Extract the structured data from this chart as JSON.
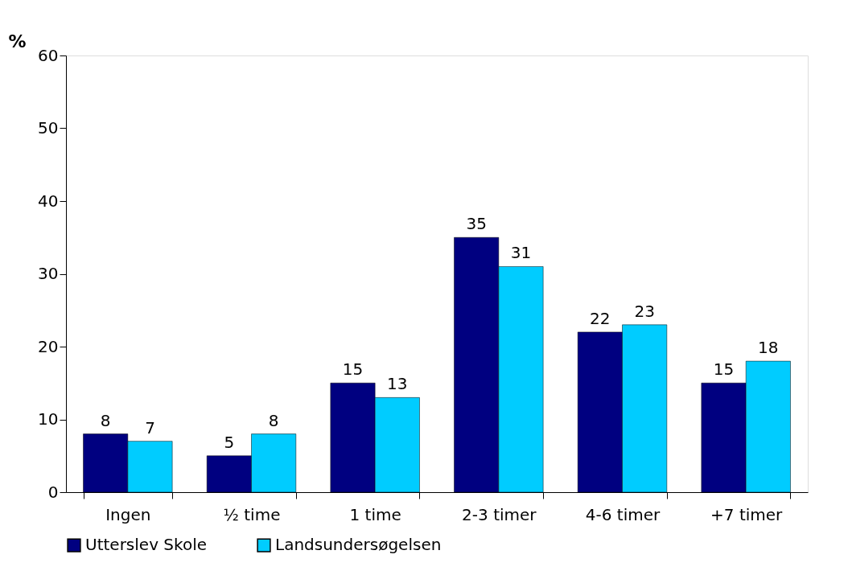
{
  "chart_data": {
    "type": "bar",
    "ylabel": "%",
    "categories": [
      "Ingen",
      "½ time",
      "1 time",
      "2-3 timer",
      "4-6 timer",
      "+7 timer"
    ],
    "series": [
      {
        "name": "Utterslev Skole",
        "color": "#000080",
        "values": [
          8,
          5,
          15,
          35,
          22,
          15
        ]
      },
      {
        "name": "Landsundersøgelsen",
        "color": "#00ccff",
        "values": [
          7,
          8,
          13,
          31,
          23,
          18
        ]
      }
    ],
    "ylim": [
      0,
      60
    ],
    "yticks": [
      0,
      10,
      20,
      30,
      40,
      50,
      60
    ],
    "data_labels": true,
    "legend": "bottom",
    "grid": false
  }
}
